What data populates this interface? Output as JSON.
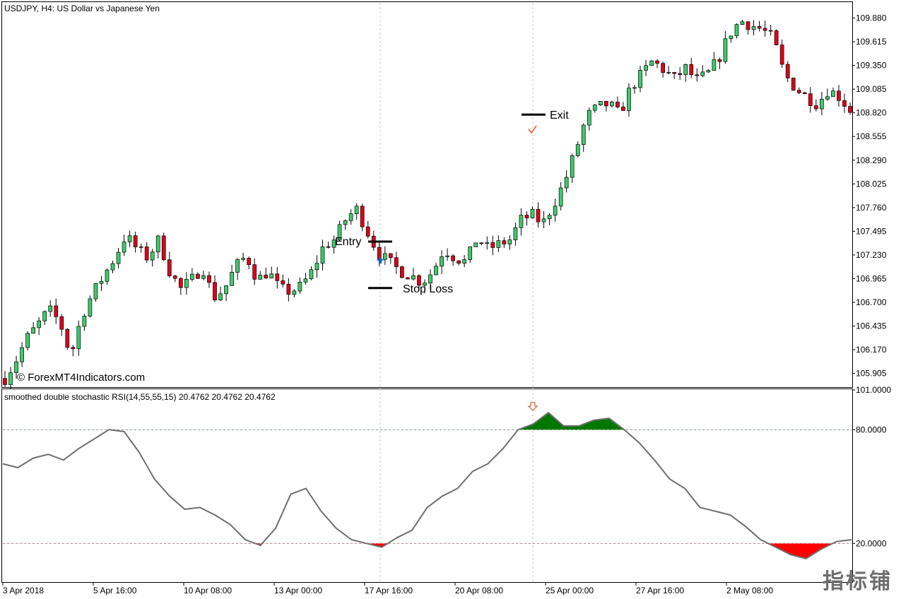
{
  "window": {
    "symbol_title": "USDJPY, H4:  US Dollar vs Japanese Yen",
    "copyright": "© ForexMT4Indicators.com",
    "watermark": "指标铺"
  },
  "annotations": {
    "entry_label": "Entry",
    "exit_label": "Exit",
    "stop_loss_label": "Stop Loss",
    "entry_price": 107.38,
    "stop_loss_price": 106.86,
    "exit_price": 108.8
  },
  "indicator": {
    "title": "smoothed double stochastic RSI(14,55,55,15) 20.4762 20.4762 20.4762"
  },
  "colors": {
    "bull_candle": "#3dcc6b",
    "bear_candle": "#e0001b",
    "overbought_fill": "#007800",
    "oversold_fill": "#ff0000",
    "indicator_line": "#6e6e6e",
    "entry_arrow": "#1060c0",
    "exit_mark": "#e06030"
  },
  "chart_data": [
    {
      "type": "candlestick",
      "ylim": [
        105.76,
        110.05
      ],
      "y_ticks": [
        "109.880",
        "109.615",
        "109.350",
        "109.085",
        "108.820",
        "108.555",
        "108.290",
        "108.025",
        "107.760",
        "107.495",
        "107.230",
        "106.965",
        "106.700",
        "106.435",
        "106.170",
        "105.905"
      ],
      "x_ticks": [
        "3 Apr 2018",
        "5 Apr 16:00",
        "10 Apr 08:00",
        "13 Apr 00:00",
        "17 Apr 16:00",
        "20 Apr 08:00",
        "25 Apr 00:00",
        "27 Apr 16:00",
        "2 May 08:00"
      ],
      "close_path": [
        105.85,
        106.05,
        106.3,
        106.45,
        106.62,
        106.48,
        106.1,
        106.55,
        106.8,
        107.0,
        107.2,
        107.45,
        107.3,
        107.2,
        107.4,
        107.05,
        106.85,
        106.95,
        107.1,
        106.75,
        106.85,
        107.1,
        107.22,
        106.95,
        107.05,
        106.85,
        106.82,
        106.88,
        107.05,
        107.32,
        107.4,
        107.62,
        107.75,
        107.5,
        107.25,
        107.15,
        107.05,
        107.0,
        106.92,
        107.05,
        107.3,
        107.2,
        107.15,
        107.42,
        107.3,
        107.35,
        107.4,
        107.62,
        107.68,
        107.58,
        107.8,
        108.05,
        108.4,
        108.78,
        108.88,
        108.92,
        108.8,
        109.1,
        109.25,
        109.4,
        109.3,
        109.2,
        109.32,
        109.18,
        109.25,
        109.42,
        109.7,
        109.85,
        109.8,
        109.75,
        109.65,
        109.25,
        109.1,
        109.0,
        108.92,
        109.08,
        109.0,
        108.85
      ]
    },
    {
      "type": "line",
      "ylim": [
        0,
        101
      ],
      "y_ticks": [
        "101.0000",
        "80.0000",
        "20.0000"
      ],
      "levels": [
        80,
        20
      ],
      "series": [
        {
          "values": [
            62,
            60,
            65,
            67,
            64,
            70,
            75,
            80,
            79,
            68,
            54,
            45,
            38,
            39,
            35,
            30,
            22,
            19,
            28,
            46,
            49,
            37,
            28,
            22,
            20,
            18,
            23,
            27,
            39,
            45,
            49,
            58,
            62,
            70,
            80,
            83,
            89,
            82,
            82,
            85,
            86,
            80,
            73,
            64,
            54,
            49,
            39,
            37,
            35,
            29,
            22,
            18,
            14,
            12,
            17,
            21,
            22
          ]
        }
      ]
    }
  ]
}
